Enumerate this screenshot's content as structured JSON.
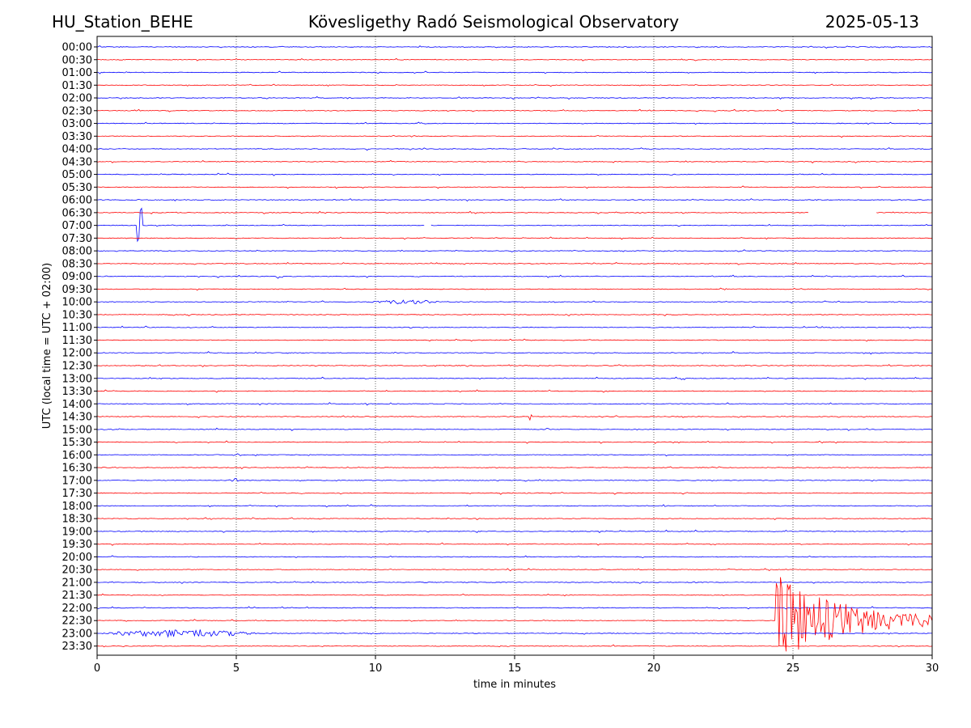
{
  "header": {
    "station": "HU_Station_BEHE",
    "title": "Kövesligethy Radó Seismological Observatory",
    "date": "2025-05-13"
  },
  "chart_data": {
    "type": "line",
    "xlabel": "time in minutes",
    "ylabel": "UTC (local time = UTC + 02:00)",
    "xlim": [
      0,
      30
    ],
    "x_ticks": [
      0,
      5,
      10,
      15,
      20,
      25,
      30
    ],
    "x_grid": "dotted",
    "trace_colors": [
      "#0000ff",
      "#ff0000"
    ],
    "traces": [
      "00:00",
      "00:30",
      "01:00",
      "01:30",
      "02:00",
      "02:30",
      "03:00",
      "03:30",
      "04:00",
      "04:30",
      "05:00",
      "05:30",
      "06:00",
      "06:30",
      "07:00",
      "07:30",
      "08:00",
      "08:30",
      "09:00",
      "09:30",
      "10:00",
      "10:30",
      "11:00",
      "11:30",
      "12:00",
      "12:30",
      "13:00",
      "13:30",
      "14:00",
      "14:30",
      "15:00",
      "15:30",
      "16:00",
      "16:30",
      "17:00",
      "17:30",
      "18:00",
      "18:30",
      "19:00",
      "19:30",
      "20:00",
      "20:30",
      "21:00",
      "21:30",
      "22:00",
      "22:30",
      "23:00",
      "23:30"
    ],
    "events": [
      {
        "trace": "07:00",
        "start_min": 1.4,
        "duration_min": 0.25,
        "amplitude": 52
      },
      {
        "trace": "10:00",
        "start_min": 9.6,
        "duration_min": 3.2,
        "amplitude": 3
      },
      {
        "trace": "09:00",
        "start_min": 6.4,
        "duration_min": 0.3,
        "amplitude": 3
      },
      {
        "trace": "11:00",
        "start_min": 1.7,
        "duration_min": 0.15,
        "amplitude": 3
      },
      {
        "trace": "14:30",
        "start_min": 15.5,
        "duration_min": 0.2,
        "amplitude": 7
      },
      {
        "trace": "17:00",
        "start_min": 4.7,
        "duration_min": 0.4,
        "amplitude": 3
      },
      {
        "trace": "23:00",
        "start_min": 0,
        "duration_min": 6.0,
        "amplitude": 5
      },
      {
        "trace": "22:30",
        "start_min": 24.4,
        "duration_min": 5.6,
        "amplitude": 55,
        "decay": true
      }
    ],
    "gaps": [
      {
        "trace": "06:30",
        "start_min": 25.6,
        "end_min": 28.0
      },
      {
        "trace": "07:00",
        "start_min": 11.8,
        "end_min": 12.0
      }
    ]
  }
}
